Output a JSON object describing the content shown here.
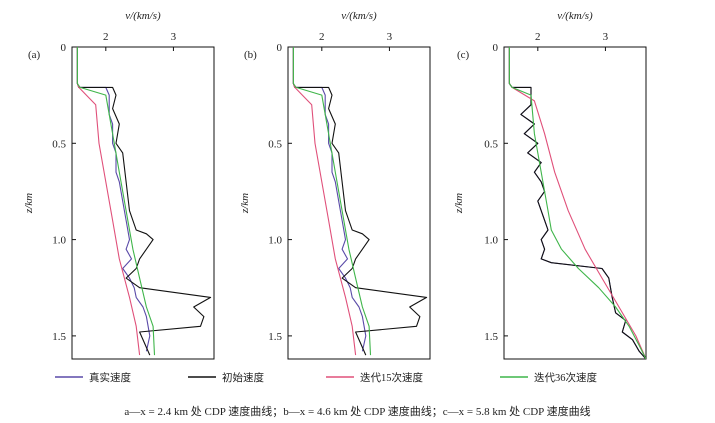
{
  "colors": {
    "true": "#5a4aa8",
    "initial": "#111111",
    "iter15": "#e0507a",
    "iter36": "#3fb54a"
  },
  "legend": [
    {
      "key": "true",
      "label": "真实速度"
    },
    {
      "key": "initial",
      "label": "初始速度"
    },
    {
      "key": "iter15",
      "label": "迭代15次速度"
    },
    {
      "key": "iter36",
      "label": "迭代36次速度"
    }
  ],
  "caption": "a—x = 2.4 km 处 CDP 速度曲线；b—x = 4.6 km 处 CDP 速度曲线；c—x = 5.8 km 处 CDP 速度曲线",
  "chart_data": [
    {
      "type": "line",
      "panel_label": "(a)",
      "xlabel": "v/(km/s)",
      "ylabel": "z/km",
      "xlim": [
        1.5,
        3.6
      ],
      "ylim": [
        0,
        1.62
      ],
      "xticks": [
        2,
        3
      ],
      "yticks": [
        0,
        0.5,
        1.0,
        1.5
      ],
      "ytick_labels": [
        "0",
        "0.5",
        "1.0",
        "1.5"
      ],
      "series": [
        {
          "key": "true",
          "points": [
            [
              1.58,
              0
            ],
            [
              1.58,
              0.19
            ],
            [
              1.6,
              0.21
            ],
            [
              2.0,
              0.21
            ],
            [
              2.05,
              0.25
            ],
            [
              2.05,
              0.35
            ],
            [
              2.1,
              0.4
            ],
            [
              2.1,
              0.5
            ],
            [
              2.15,
              0.55
            ],
            [
              2.15,
              0.65
            ],
            [
              2.2,
              0.7
            ],
            [
              2.25,
              0.8
            ],
            [
              2.3,
              0.9
            ],
            [
              2.35,
              1.0
            ],
            [
              2.3,
              1.05
            ],
            [
              2.38,
              1.1
            ],
            [
              2.25,
              1.15
            ],
            [
              2.35,
              1.2
            ],
            [
              2.42,
              1.25
            ],
            [
              2.45,
              1.3
            ],
            [
              2.55,
              1.35
            ],
            [
              2.6,
              1.4
            ],
            [
              2.65,
              1.5
            ],
            [
              2.6,
              1.58
            ]
          ]
        },
        {
          "key": "initial",
          "points": [
            [
              1.58,
              0
            ],
            [
              1.58,
              0.19
            ],
            [
              1.6,
              0.21
            ],
            [
              2.1,
              0.21
            ],
            [
              2.15,
              0.25
            ],
            [
              2.1,
              0.32
            ],
            [
              2.2,
              0.4
            ],
            [
              2.15,
              0.5
            ],
            [
              2.25,
              0.55
            ],
            [
              2.3,
              0.7
            ],
            [
              2.35,
              0.85
            ],
            [
              2.45,
              0.95
            ],
            [
              2.6,
              0.97
            ],
            [
              2.7,
              1.0
            ],
            [
              2.6,
              1.05
            ],
            [
              2.5,
              1.1
            ],
            [
              2.45,
              1.15
            ],
            [
              2.3,
              1.2
            ],
            [
              2.5,
              1.25
            ],
            [
              3.55,
              1.3
            ],
            [
              3.3,
              1.35
            ],
            [
              3.45,
              1.4
            ],
            [
              3.4,
              1.45
            ],
            [
              2.5,
              1.48
            ],
            [
              2.65,
              1.6
            ]
          ]
        },
        {
          "key": "iter15",
          "points": [
            [
              1.58,
              0
            ],
            [
              1.58,
              0.19
            ],
            [
              1.6,
              0.21
            ],
            [
              1.85,
              0.3
            ],
            [
              1.9,
              0.5
            ],
            [
              2.0,
              0.7
            ],
            [
              2.1,
              0.9
            ],
            [
              2.2,
              1.1
            ],
            [
              2.35,
              1.3
            ],
            [
              2.45,
              1.45
            ],
            [
              2.5,
              1.6
            ]
          ]
        },
        {
          "key": "iter36",
          "points": [
            [
              1.58,
              0
            ],
            [
              1.58,
              0.19
            ],
            [
              1.62,
              0.21
            ],
            [
              2.0,
              0.25
            ],
            [
              2.1,
              0.45
            ],
            [
              2.2,
              0.65
            ],
            [
              2.3,
              0.85
            ],
            [
              2.4,
              1.05
            ],
            [
              2.5,
              1.2
            ],
            [
              2.6,
              1.35
            ],
            [
              2.7,
              1.45
            ],
            [
              2.72,
              1.6
            ]
          ]
        }
      ]
    },
    {
      "type": "line",
      "panel_label": "(b)",
      "xlabel": "v/(km/s)",
      "ylabel": "z/km",
      "xlim": [
        1.5,
        3.6
      ],
      "ylim": [
        0,
        1.62
      ],
      "xticks": [
        2,
        3
      ],
      "yticks": [
        0,
        0.5,
        1.0,
        1.5
      ],
      "ytick_labels": [
        "0",
        "0.5",
        "1.0",
        "1.5"
      ],
      "series": [
        {
          "key": "true",
          "points": [
            [
              1.58,
              0
            ],
            [
              1.58,
              0.19
            ],
            [
              1.6,
              0.21
            ],
            [
              2.0,
              0.21
            ],
            [
              2.05,
              0.25
            ],
            [
              2.05,
              0.35
            ],
            [
              2.1,
              0.4
            ],
            [
              2.1,
              0.5
            ],
            [
              2.15,
              0.55
            ],
            [
              2.15,
              0.65
            ],
            [
              2.2,
              0.7
            ],
            [
              2.25,
              0.8
            ],
            [
              2.3,
              0.9
            ],
            [
              2.35,
              1.0
            ],
            [
              2.3,
              1.05
            ],
            [
              2.38,
              1.1
            ],
            [
              2.25,
              1.15
            ],
            [
              2.35,
              1.2
            ],
            [
              2.42,
              1.25
            ],
            [
              2.45,
              1.3
            ],
            [
              2.55,
              1.35
            ],
            [
              2.6,
              1.4
            ],
            [
              2.65,
              1.5
            ],
            [
              2.6,
              1.58
            ]
          ]
        },
        {
          "key": "initial",
          "points": [
            [
              1.58,
              0
            ],
            [
              1.58,
              0.19
            ],
            [
              1.6,
              0.21
            ],
            [
              2.1,
              0.21
            ],
            [
              2.15,
              0.25
            ],
            [
              2.1,
              0.32
            ],
            [
              2.2,
              0.4
            ],
            [
              2.15,
              0.5
            ],
            [
              2.25,
              0.55
            ],
            [
              2.3,
              0.7
            ],
            [
              2.35,
              0.85
            ],
            [
              2.45,
              0.95
            ],
            [
              2.6,
              0.97
            ],
            [
              2.7,
              1.0
            ],
            [
              2.6,
              1.05
            ],
            [
              2.5,
              1.1
            ],
            [
              2.45,
              1.15
            ],
            [
              2.3,
              1.2
            ],
            [
              2.5,
              1.25
            ],
            [
              3.55,
              1.3
            ],
            [
              3.3,
              1.35
            ],
            [
              3.45,
              1.4
            ],
            [
              3.4,
              1.45
            ],
            [
              2.5,
              1.48
            ],
            [
              2.65,
              1.6
            ]
          ]
        },
        {
          "key": "iter15",
          "points": [
            [
              1.58,
              0
            ],
            [
              1.58,
              0.19
            ],
            [
              1.6,
              0.21
            ],
            [
              1.85,
              0.3
            ],
            [
              1.9,
              0.5
            ],
            [
              2.0,
              0.7
            ],
            [
              2.1,
              0.9
            ],
            [
              2.2,
              1.1
            ],
            [
              2.35,
              1.3
            ],
            [
              2.45,
              1.45
            ],
            [
              2.5,
              1.6
            ]
          ]
        },
        {
          "key": "iter36",
          "points": [
            [
              1.58,
              0
            ],
            [
              1.58,
              0.19
            ],
            [
              1.62,
              0.21
            ],
            [
              2.0,
              0.25
            ],
            [
              2.1,
              0.45
            ],
            [
              2.2,
              0.65
            ],
            [
              2.3,
              0.85
            ],
            [
              2.4,
              1.05
            ],
            [
              2.5,
              1.2
            ],
            [
              2.6,
              1.35
            ],
            [
              2.7,
              1.45
            ],
            [
              2.72,
              1.6
            ]
          ]
        }
      ]
    },
    {
      "type": "line",
      "panel_label": "(c)",
      "xlabel": "v/(km/s)",
      "ylabel": "z/km",
      "xlim": [
        1.5,
        3.6
      ],
      "ylim": [
        0,
        1.62
      ],
      "xticks": [
        2,
        3
      ],
      "yticks": [
        0,
        0.5,
        1.0,
        1.5
      ],
      "ytick_labels": [
        "0",
        "0.5",
        "1.0",
        "1.5"
      ],
      "series": [
        {
          "key": "true",
          "points": [
            [
              1.58,
              0
            ],
            [
              1.58,
              0.19
            ],
            [
              1.62,
              0.21
            ],
            [
              1.9,
              0.21
            ],
            [
              1.9,
              0.3
            ],
            [
              1.75,
              0.35
            ],
            [
              1.95,
              0.4
            ],
            [
              1.8,
              0.45
            ],
            [
              2.0,
              0.5
            ],
            [
              1.85,
              0.55
            ],
            [
              2.05,
              0.6
            ],
            [
              1.95,
              0.65
            ],
            [
              2.05,
              0.7
            ],
            [
              2.1,
              0.75
            ],
            [
              2.0,
              0.8
            ],
            [
              2.05,
              0.85
            ],
            [
              2.1,
              0.9
            ],
            [
              2.15,
              0.95
            ],
            [
              2.05,
              1.0
            ],
            [
              2.1,
              1.05
            ],
            [
              2.05,
              1.1
            ],
            [
              2.2,
              1.12
            ],
            [
              2.95,
              1.15
            ],
            [
              3.05,
              1.2
            ],
            [
              3.1,
              1.3
            ],
            [
              3.15,
              1.38
            ],
            [
              3.3,
              1.42
            ],
            [
              3.25,
              1.48
            ],
            [
              3.4,
              1.52
            ],
            [
              3.5,
              1.58
            ],
            [
              3.6,
              1.62
            ]
          ]
        },
        {
          "key": "initial",
          "points": [
            [
              1.58,
              0
            ],
            [
              1.58,
              0.19
            ],
            [
              1.62,
              0.21
            ],
            [
              1.9,
              0.21
            ],
            [
              1.9,
              0.3
            ],
            [
              1.75,
              0.35
            ],
            [
              1.95,
              0.4
            ],
            [
              1.8,
              0.45
            ],
            [
              2.0,
              0.5
            ],
            [
              1.85,
              0.55
            ],
            [
              2.05,
              0.6
            ],
            [
              1.95,
              0.65
            ],
            [
              2.05,
              0.7
            ],
            [
              2.1,
              0.75
            ],
            [
              2.0,
              0.8
            ],
            [
              2.05,
              0.85
            ],
            [
              2.1,
              0.9
            ],
            [
              2.15,
              0.95
            ],
            [
              2.05,
              1.0
            ],
            [
              2.1,
              1.05
            ],
            [
              2.05,
              1.1
            ],
            [
              2.2,
              1.12
            ],
            [
              2.95,
              1.15
            ],
            [
              3.05,
              1.2
            ],
            [
              3.1,
              1.3
            ],
            [
              3.15,
              1.38
            ],
            [
              3.3,
              1.42
            ],
            [
              3.25,
              1.48
            ],
            [
              3.4,
              1.52
            ],
            [
              3.5,
              1.58
            ],
            [
              3.6,
              1.62
            ]
          ]
        },
        {
          "key": "iter15",
          "points": [
            [
              1.58,
              0
            ],
            [
              1.58,
              0.19
            ],
            [
              1.62,
              0.21
            ],
            [
              1.95,
              0.28
            ],
            [
              2.1,
              0.45
            ],
            [
              2.25,
              0.65
            ],
            [
              2.45,
              0.85
            ],
            [
              2.7,
              1.05
            ],
            [
              2.95,
              1.2
            ],
            [
              3.2,
              1.35
            ],
            [
              3.45,
              1.5
            ],
            [
              3.6,
              1.62
            ]
          ]
        },
        {
          "key": "iter36",
          "points": [
            [
              1.58,
              0
            ],
            [
              1.58,
              0.19
            ],
            [
              1.62,
              0.21
            ],
            [
              1.9,
              0.25
            ],
            [
              1.95,
              0.45
            ],
            [
              2.05,
              0.65
            ],
            [
              2.15,
              0.85
            ],
            [
              2.2,
              0.95
            ],
            [
              2.35,
              1.05
            ],
            [
              2.6,
              1.15
            ],
            [
              2.9,
              1.25
            ],
            [
              3.15,
              1.35
            ],
            [
              3.35,
              1.45
            ],
            [
              3.5,
              1.55
            ],
            [
              3.6,
              1.62
            ]
          ]
        }
      ]
    }
  ]
}
